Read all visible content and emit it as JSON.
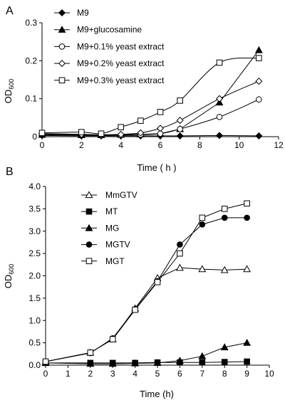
{
  "chart_data": [
    {
      "type": "line",
      "panel_label": "A",
      "title": "",
      "xlabel": "Time ( h )",
      "ylabel_main": "OD",
      "ylabel_sub": "600",
      "xlim": [
        0,
        12
      ],
      "ylim": [
        0,
        0.3
      ],
      "xticks": [
        0,
        2,
        4,
        6,
        8,
        10,
        12
      ],
      "yticks": [
        0,
        0.1,
        0.2,
        0.3
      ],
      "xtick_labels": [
        "0",
        "2",
        "4",
        "6",
        "8",
        "10",
        "12"
      ],
      "ytick_labels": [
        "0",
        "0.1",
        "0.2",
        "0.3"
      ],
      "grid": false,
      "legend_position": "top-left",
      "series": [
        {
          "name": "M9",
          "marker": "diamond-filled",
          "smooth": false,
          "x": [
            0,
            2,
            3,
            4,
            5,
            6,
            7,
            9,
            11
          ],
          "y": [
            0.003,
            0.002,
            0.002,
            0.002,
            0.002,
            0.002,
            0.002,
            0.003,
            0.002
          ]
        },
        {
          "name": "M9+glucosamine",
          "marker": "triangle-filled",
          "smooth": false,
          "x": [
            0,
            2,
            3,
            4,
            5,
            6,
            7,
            9,
            11
          ],
          "y": [
            0.005,
            0.004,
            0.004,
            0.005,
            0.006,
            0.008,
            0.02,
            0.09,
            0.228
          ]
        },
        {
          "name": "M9+0.1% yeast extract",
          "marker": "circle-open",
          "smooth": true,
          "x": [
            0,
            2,
            3,
            4,
            5,
            6,
            7,
            9,
            11
          ],
          "y": [
            0.007,
            0.005,
            0.004,
            0.004,
            0.005,
            0.008,
            0.02,
            0.052,
            0.098
          ]
        },
        {
          "name": "M9+0.2% yeast extract",
          "marker": "diamond-open",
          "smooth": true,
          "x": [
            0,
            2,
            3,
            4,
            5,
            6,
            7,
            9,
            11
          ],
          "y": [
            0.008,
            0.006,
            0.005,
            0.006,
            0.01,
            0.022,
            0.043,
            0.1,
            0.146
          ]
        },
        {
          "name": "M9+0.3% yeast extract",
          "marker": "square-open",
          "smooth": true,
          "x": [
            0,
            2,
            3,
            4,
            5,
            6,
            7,
            9,
            11
          ],
          "y": [
            0.01,
            0.012,
            0.008,
            0.025,
            0.042,
            0.065,
            0.095,
            0.195,
            0.207
          ]
        }
      ]
    },
    {
      "type": "line",
      "panel_label": "B",
      "title": "",
      "xlabel": "Time (h)",
      "ylabel_main": "OD",
      "ylabel_sub": "600",
      "xlim": [
        0,
        10
      ],
      "ylim": [
        0,
        4
      ],
      "xticks": [
        0,
        1,
        2,
        3,
        4,
        5,
        6,
        7,
        8,
        9,
        10
      ],
      "yticks": [
        0,
        0.5,
        1,
        1.5,
        2,
        2.5,
        3,
        3.5,
        4
      ],
      "xtick_labels": [
        "0",
        "1",
        "2",
        "3",
        "4",
        "5",
        "6",
        "7",
        "8",
        "9",
        "10"
      ],
      "ytick_labels": [
        "0.0",
        "0.5",
        "1.0",
        "1.5",
        "2.0",
        "2.5",
        "3.0",
        "3.5",
        "4.0"
      ],
      "grid": false,
      "legend_position": "top-left",
      "series": [
        {
          "name": "MmGTV",
          "marker": "triangle-open",
          "smooth": false,
          "x": [
            0,
            2,
            3,
            4,
            5,
            6,
            7,
            8,
            9
          ],
          "y": [
            0.08,
            0.28,
            0.58,
            1.27,
            1.95,
            2.18,
            2.15,
            2.13,
            2.15
          ]
        },
        {
          "name": "MT",
          "marker": "square-filled",
          "smooth": false,
          "x": [
            0,
            2,
            3,
            4,
            5,
            6,
            7,
            8,
            9
          ],
          "y": [
            0.05,
            0.05,
            0.05,
            0.05,
            0.06,
            0.06,
            0.06,
            0.07,
            0.08
          ]
        },
        {
          "name": "MG",
          "marker": "triangle-filled",
          "smooth": false,
          "x": [
            0,
            2,
            3,
            4,
            5,
            6,
            7,
            8,
            9
          ],
          "y": [
            0.05,
            0.03,
            0.03,
            0.04,
            0.05,
            0.1,
            0.2,
            0.4,
            0.5
          ]
        },
        {
          "name": "MGTV",
          "marker": "circle-filled",
          "smooth": false,
          "x": [
            0,
            2,
            3,
            4,
            5,
            6,
            7,
            8,
            9
          ],
          "y": [
            0.08,
            0.27,
            0.6,
            1.25,
            1.88,
            2.7,
            3.15,
            3.3,
            3.3
          ]
        },
        {
          "name": "MGT",
          "marker": "square-open",
          "smooth": false,
          "x": [
            0,
            2,
            3,
            4,
            5,
            6,
            7,
            8,
            9
          ],
          "y": [
            0.08,
            0.28,
            0.58,
            1.24,
            1.86,
            2.5,
            3.3,
            3.5,
            3.62
          ]
        }
      ]
    }
  ]
}
